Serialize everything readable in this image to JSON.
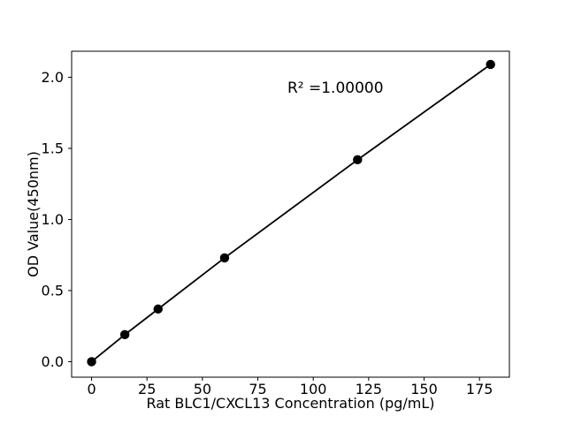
{
  "chart_data": {
    "type": "line",
    "title": "",
    "xlabel": "Rat BLC1/CXCL13 Concentration (pg/mL)",
    "ylabel": "OD Value(450nm)",
    "annotation": {
      "text": "R² =1.00000",
      "x": 110,
      "y": 1.89
    },
    "x": [
      0,
      15,
      30,
      60,
      120,
      180
    ],
    "y": [
      0.0,
      0.19,
      0.37,
      0.73,
      1.42,
      2.09
    ],
    "xticks": [
      "0",
      "25",
      "50",
      "75",
      "100",
      "125",
      "150",
      "175"
    ],
    "yticks": [
      "0.0",
      "0.5",
      "1.0",
      "1.5",
      "2.0"
    ],
    "xlim": [
      -9,
      188.5
    ],
    "ylim": [
      -0.109,
      2.183
    ],
    "grid": false,
    "legend": "none",
    "marker": "circle",
    "line_color": "#000000",
    "marker_color": "#000000",
    "axis_color": "#000000",
    "text_color": "#000000",
    "background": "#ffffff"
  }
}
